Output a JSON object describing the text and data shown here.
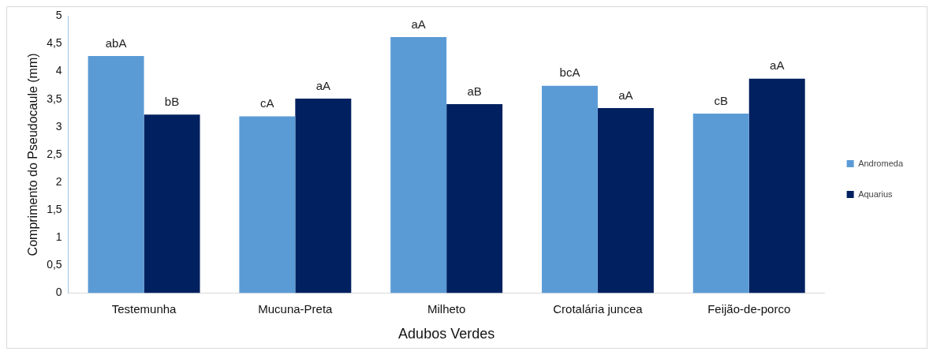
{
  "chart_data": {
    "type": "bar",
    "xlabel": "Adubos Verdes",
    "ylabel": "Comprimento do Pseudocaule (mm)",
    "categories": [
      "Testemunha",
      "Mucuna-Preta",
      "Milheto",
      "Crotalária juncea",
      "Feijão-de-porco"
    ],
    "series": [
      {
        "name": "Andromeda",
        "color": "#5b9bd5",
        "values": [
          4.28,
          3.19,
          4.62,
          3.74,
          3.24
        ],
        "value_labels": [
          "abA",
          "cA",
          "aA",
          "bcA",
          "cB"
        ]
      },
      {
        "name": "Aquarius",
        "color": "#002060",
        "values": [
          3.22,
          3.51,
          3.41,
          3.34,
          3.87
        ],
        "value_labels": [
          "bB",
          "aA",
          "aB",
          "aA",
          "aA"
        ]
      }
    ],
    "ylim": [
      0,
      5
    ],
    "yticks": [
      0,
      {
        "value": 0.5,
        "label": "0,5"
      },
      1,
      {
        "value": 1.5,
        "label": "1,5"
      },
      2,
      {
        "value": 2.5,
        "label": "2,5"
      },
      3,
      {
        "value": 3.5,
        "label": "3,5"
      },
      4,
      {
        "value": 4.5,
        "label": "4,5"
      },
      5
    ],
    "grid": false,
    "legend": "right"
  }
}
